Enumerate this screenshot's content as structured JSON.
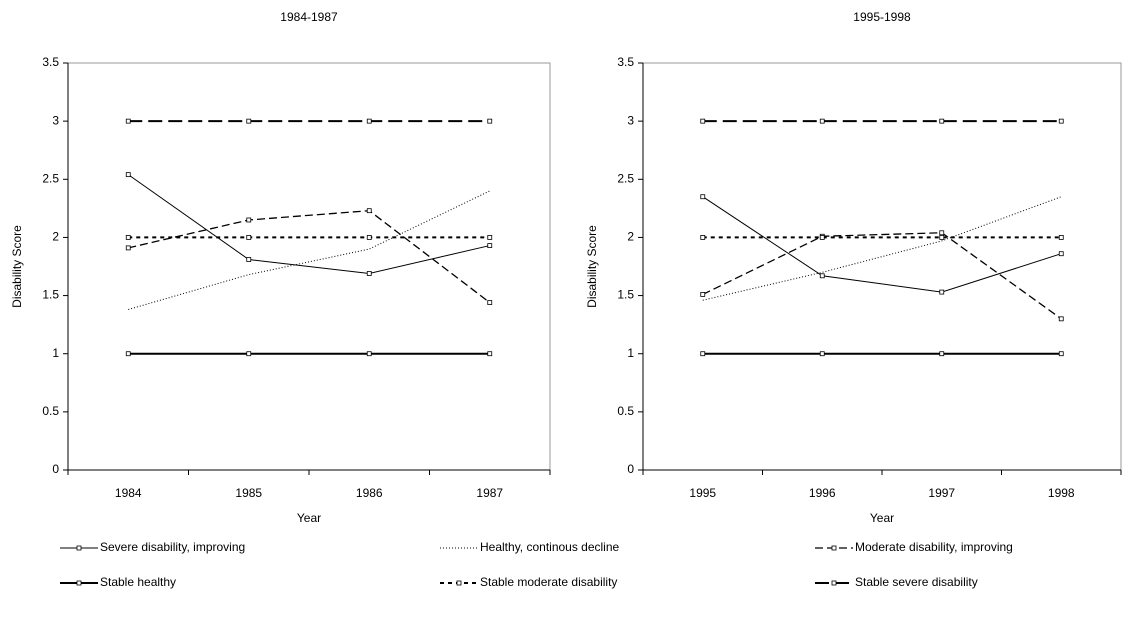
{
  "chart_data": [
    {
      "type": "line",
      "title": "1984-1987",
      "x_label": "Year",
      "y_label": "Disability Score",
      "categories": [
        "1984",
        "1985",
        "1986",
        "1987"
      ],
      "ylim": [
        0,
        3.5
      ],
      "yticks": [
        0,
        0.5,
        1,
        1.5,
        2,
        2.5,
        3,
        3.5
      ],
      "series": [
        {
          "name": "Severe disability, improving",
          "color": "#000000",
          "dash": "none",
          "width": 1,
          "marker": true,
          "values": [
            2.54,
            1.81,
            1.69,
            1.93
          ]
        },
        {
          "name": "Healthy, continous decline",
          "color": "#000000",
          "dash": "1 2",
          "width": 1,
          "marker": false,
          "values": [
            1.38,
            1.68,
            1.9,
            2.4
          ]
        },
        {
          "name": "Moderate disability, improving",
          "color": "#000000",
          "dash": "8 4",
          "width": 1.3,
          "marker": true,
          "values": [
            1.91,
            2.15,
            2.23,
            1.44
          ]
        },
        {
          "name": "Stable healthy",
          "color": "#000000",
          "dash": "none",
          "width": 2,
          "marker": true,
          "values": [
            1,
            1,
            1,
            1
          ]
        },
        {
          "name": "Stable moderate disability",
          "color": "#000000",
          "dash": "4 4",
          "width": 2,
          "marker": true,
          "values": [
            2,
            2,
            2,
            2
          ]
        },
        {
          "name": "Stable severe disability",
          "color": "#000000",
          "dash": "14 6",
          "width": 2,
          "marker": true,
          "values": [
            3,
            3,
            3,
            3
          ]
        }
      ]
    },
    {
      "type": "line",
      "title": "1995-1998",
      "x_label": "Year",
      "y_label": "Disability Score",
      "categories": [
        "1995",
        "1996",
        "1997",
        "1998"
      ],
      "ylim": [
        0,
        3.5
      ],
      "yticks": [
        0,
        0.5,
        1,
        1.5,
        2,
        2.5,
        3,
        3.5
      ],
      "series": [
        {
          "color": "#000000",
          "dash": "none",
          "width": 1,
          "marker": true,
          "values": [
            2.35,
            1.67,
            1.53,
            1.86
          ]
        },
        {
          "color": "#000000",
          "dash": "1 2",
          "width": 1,
          "marker": false,
          "values": [
            1.46,
            1.7,
            1.97,
            2.35
          ]
        },
        {
          "color": "#000000",
          "dash": "8 4",
          "width": 1.3,
          "marker": true,
          "values": [
            1.51,
            2.01,
            2.04,
            1.3
          ]
        },
        {
          "color": "#000000",
          "dash": "none",
          "width": 2,
          "marker": true,
          "values": [
            1,
            1,
            1,
            1
          ]
        },
        {
          "color": "#000000",
          "dash": "4 4",
          "width": 2,
          "marker": true,
          "values": [
            2,
            2,
            2,
            2
          ]
        },
        {
          "color": "#000000",
          "dash": "14 6",
          "width": 2,
          "marker": true,
          "values": [
            3,
            3,
            3,
            3
          ]
        }
      ]
    }
  ]
}
